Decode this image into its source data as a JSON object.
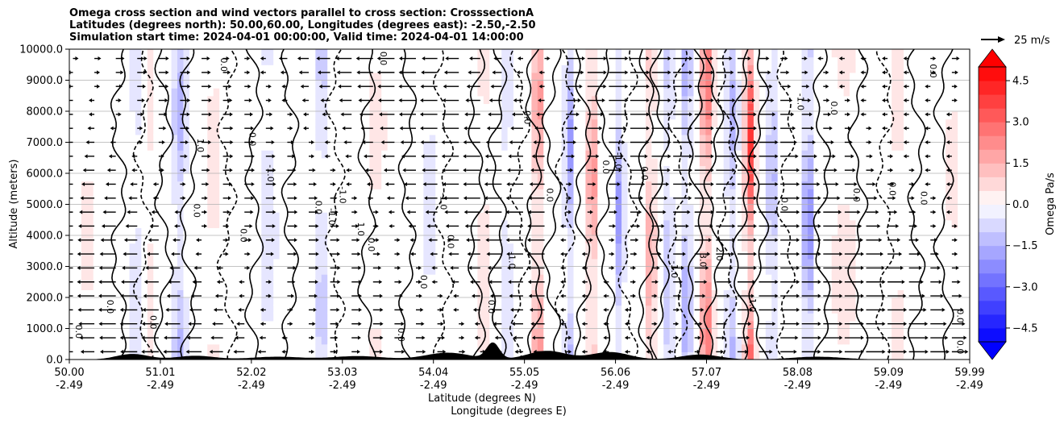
{
  "title": {
    "line1": "Omega cross section and wind vectors parallel to cross section: CrosssectionA",
    "line2": "Latitudes (degrees north): 50.00,60.00, Longitudes (degrees east): -2.50,-2.50",
    "line3": "Simulation start time: 2024-04-01 00:00:00, Valid time: 2024-04-01 14:00:00"
  },
  "quiver_key": {
    "label": "25 m/s"
  },
  "chart_data": {
    "type": "heatmap",
    "xlabel_line1": "Latitude (degrees N)",
    "xlabel_line2": "Longitude (degrees E)",
    "ylabel": "Altitude (meters)",
    "colorbar_label": "Omega Pa/s",
    "xlim": [
      50.0,
      59.99
    ],
    "ylim": [
      0,
      10000
    ],
    "grid": "horizontal",
    "x_ticks": [
      {
        "lat": "50.00",
        "lon": "-2.49",
        "v": 50.0
      },
      {
        "lat": "51.01",
        "lon": "-2.49",
        "v": 51.01
      },
      {
        "lat": "52.02",
        "lon": "-2.49",
        "v": 52.02
      },
      {
        "lat": "53.03",
        "lon": "-2.49",
        "v": 53.03
      },
      {
        "lat": "54.04",
        "lon": "-2.49",
        "v": 54.04
      },
      {
        "lat": "55.05",
        "lon": "-2.49",
        "v": 55.05
      },
      {
        "lat": "56.06",
        "lon": "-2.49",
        "v": 56.06
      },
      {
        "lat": "57.07",
        "lon": "-2.49",
        "v": 57.07
      },
      {
        "lat": "58.08",
        "lon": "-2.49",
        "v": 58.08
      },
      {
        "lat": "59.09",
        "lon": "-2.49",
        "v": 59.09
      },
      {
        "lat": "59.99",
        "lon": "-2.49",
        "v": 59.99
      }
    ],
    "y_ticks": [
      {
        "label": "0.0",
        "v": 0
      },
      {
        "label": "1000.0",
        "v": 1000
      },
      {
        "label": "2000.0",
        "v": 2000
      },
      {
        "label": "3000.0",
        "v": 3000
      },
      {
        "label": "4000.0",
        "v": 4000
      },
      {
        "label": "5000.0",
        "v": 5000
      },
      {
        "label": "6000.0",
        "v": 6000
      },
      {
        "label": "7000.0",
        "v": 7000
      },
      {
        "label": "8000.0",
        "v": 8000
      },
      {
        "label": "9000.0",
        "v": 9000
      },
      {
        "label": "10000.0",
        "v": 10000
      }
    ],
    "colorbar": {
      "min": -5.0,
      "max": 5.0,
      "step": 0.5,
      "extend": "both",
      "ticks": [
        {
          "label": "4.5",
          "v": 4.5
        },
        {
          "label": "3.0",
          "v": 3.0
        },
        {
          "label": "1.5",
          "v": 1.5
        },
        {
          "label": "0.0",
          "v": 0.0
        },
        {
          "label": "−1.5",
          "v": -1.5
        },
        {
          "label": "−3.0",
          "v": -3.0
        },
        {
          "label": "−4.5",
          "v": -4.5
        }
      ]
    },
    "contour_labels": [
      {
        "text": "0.0",
        "x": 50.07,
        "y": 900
      },
      {
        "text": "0.0",
        "x": 50.42,
        "y": 1700
      },
      {
        "text": "0.0",
        "x": 50.9,
        "y": 1200
      },
      {
        "text": "0.0",
        "x": 51.38,
        "y": 4800
      },
      {
        "text": "1.0",
        "x": 51.42,
        "y": 6900
      },
      {
        "text": "0.0",
        "x": 51.9,
        "y": 4000
      },
      {
        "text": "0.0",
        "x": 51.68,
        "y": 9500
      },
      {
        "text": "0.0",
        "x": 52.0,
        "y": 7100
      },
      {
        "text": "-1.0",
        "x": 52.2,
        "y": 6000
      },
      {
        "text": "0.0",
        "x": 52.73,
        "y": 4900
      },
      {
        "text": "-1.0",
        "x": 52.88,
        "y": 4600
      },
      {
        "text": "-1.0",
        "x": 53.0,
        "y": 5300
      },
      {
        "text": "1.0",
        "x": 53.2,
        "y": 4200
      },
      {
        "text": "0.0",
        "x": 53.32,
        "y": 3700
      },
      {
        "text": "0.0",
        "x": 53.45,
        "y": 9700
      },
      {
        "text": "0.0",
        "x": 53.65,
        "y": 800
      },
      {
        "text": "0.0",
        "x": 53.9,
        "y": 2500
      },
      {
        "text": "-1.0",
        "x": 54.12,
        "y": 5100
      },
      {
        "text": "0.0",
        "x": 54.2,
        "y": 3800
      },
      {
        "text": "-1.0",
        "x": 54.88,
        "y": 3200
      },
      {
        "text": "0.0",
        "x": 54.65,
        "y": 1700
      },
      {
        "text": "0.0",
        "x": 55.05,
        "y": 7800
      },
      {
        "text": "0.0",
        "x": 55.3,
        "y": 5300
      },
      {
        "text": "0.0",
        "x": 55.92,
        "y": 6200
      },
      {
        "text": "-1.0",
        "x": 56.06,
        "y": 6400
      },
      {
        "text": "0.0",
        "x": 56.35,
        "y": 6000
      },
      {
        "text": "-1.0",
        "x": 56.68,
        "y": 2900
      },
      {
        "text": "3.0",
        "x": 57.0,
        "y": 3200
      },
      {
        "text": "2.0",
        "x": 57.18,
        "y": 3400
      },
      {
        "text": "-1.0",
        "x": 57.55,
        "y": 1800
      },
      {
        "text": "0.0",
        "x": 57.9,
        "y": 5000
      },
      {
        "text": "-1.0",
        "x": 58.08,
        "y": 8300
      },
      {
        "text": "0.0",
        "x": 58.45,
        "y": 8100
      },
      {
        "text": "0.0",
        "x": 58.7,
        "y": 5300
      },
      {
        "text": "0.0",
        "x": 59.1,
        "y": 5500
      },
      {
        "text": "0.0",
        "x": 59.45,
        "y": 5200
      },
      {
        "text": "0.0",
        "x": 59.55,
        "y": 9300
      },
      {
        "text": "0.0",
        "x": 59.85,
        "y": 1400
      },
      {
        "text": "0.0",
        "x": 59.85,
        "y": 400
      }
    ]
  }
}
